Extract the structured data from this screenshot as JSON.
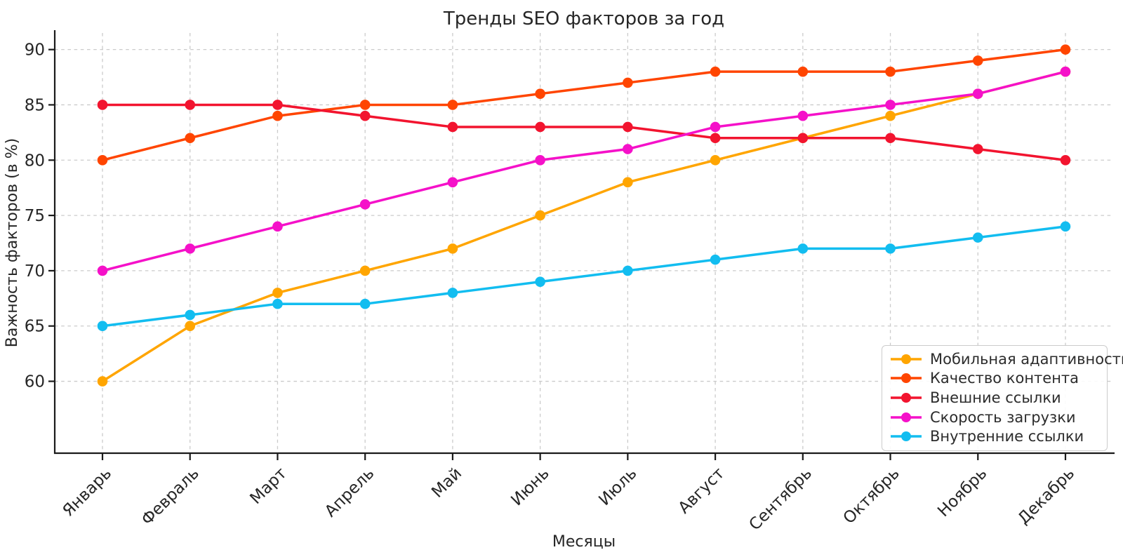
{
  "chart": {
    "title": "Тренды SEO факторов за год",
    "xlabel": "Месяцы",
    "ylabel": "Важность факторов (в %)"
  },
  "chart_data": {
    "type": "line",
    "title": "Тренды SEO факторов за год",
    "xlabel": "Месяцы",
    "ylabel": "Важность факторов (в %)",
    "categories": [
      "Январь",
      "Февраль",
      "Март",
      "Апрель",
      "Май",
      "Июнь",
      "Июль",
      "Август",
      "Сентябрь",
      "Октябрь",
      "Ноябрь",
      "Декабрь"
    ],
    "series": [
      {
        "name": "Мобильная адаптивность",
        "color": "#FFA500",
        "values": [
          60,
          65,
          68,
          70,
          72,
          75,
          78,
          80,
          82,
          84,
          86,
          88
        ]
      },
      {
        "name": "Качество контента",
        "color": "#FF4500",
        "values": [
          80,
          82,
          84,
          85,
          85,
          86,
          87,
          88,
          88,
          88,
          89,
          90
        ]
      },
      {
        "name": "Внешние ссылки",
        "color": "#F2142F",
        "values": [
          85,
          85,
          85,
          84,
          83,
          83,
          83,
          82,
          82,
          82,
          81,
          80
        ]
      },
      {
        "name": "Скорость загрузки",
        "color": "#F511C9",
        "values": [
          70,
          72,
          74,
          76,
          78,
          80,
          81,
          83,
          84,
          85,
          86,
          88
        ]
      },
      {
        "name": "Внутренние ссылки",
        "color": "#12BDF0",
        "values": [
          65,
          66,
          67,
          67,
          68,
          69,
          70,
          71,
          72,
          72,
          73,
          74
        ]
      }
    ],
    "yticks": [
      60,
      65,
      70,
      75,
      80,
      85,
      90
    ],
    "ylim": [
      53.5,
      91.5
    ],
    "grid": true,
    "grid_style": "dashed",
    "marker": "circle",
    "legend_position": "lower right",
    "colors": {
      "grid": "#CBCBCB",
      "spine": "#1A1A1A",
      "text": "#262626",
      "background": "#FFFFFF"
    }
  }
}
